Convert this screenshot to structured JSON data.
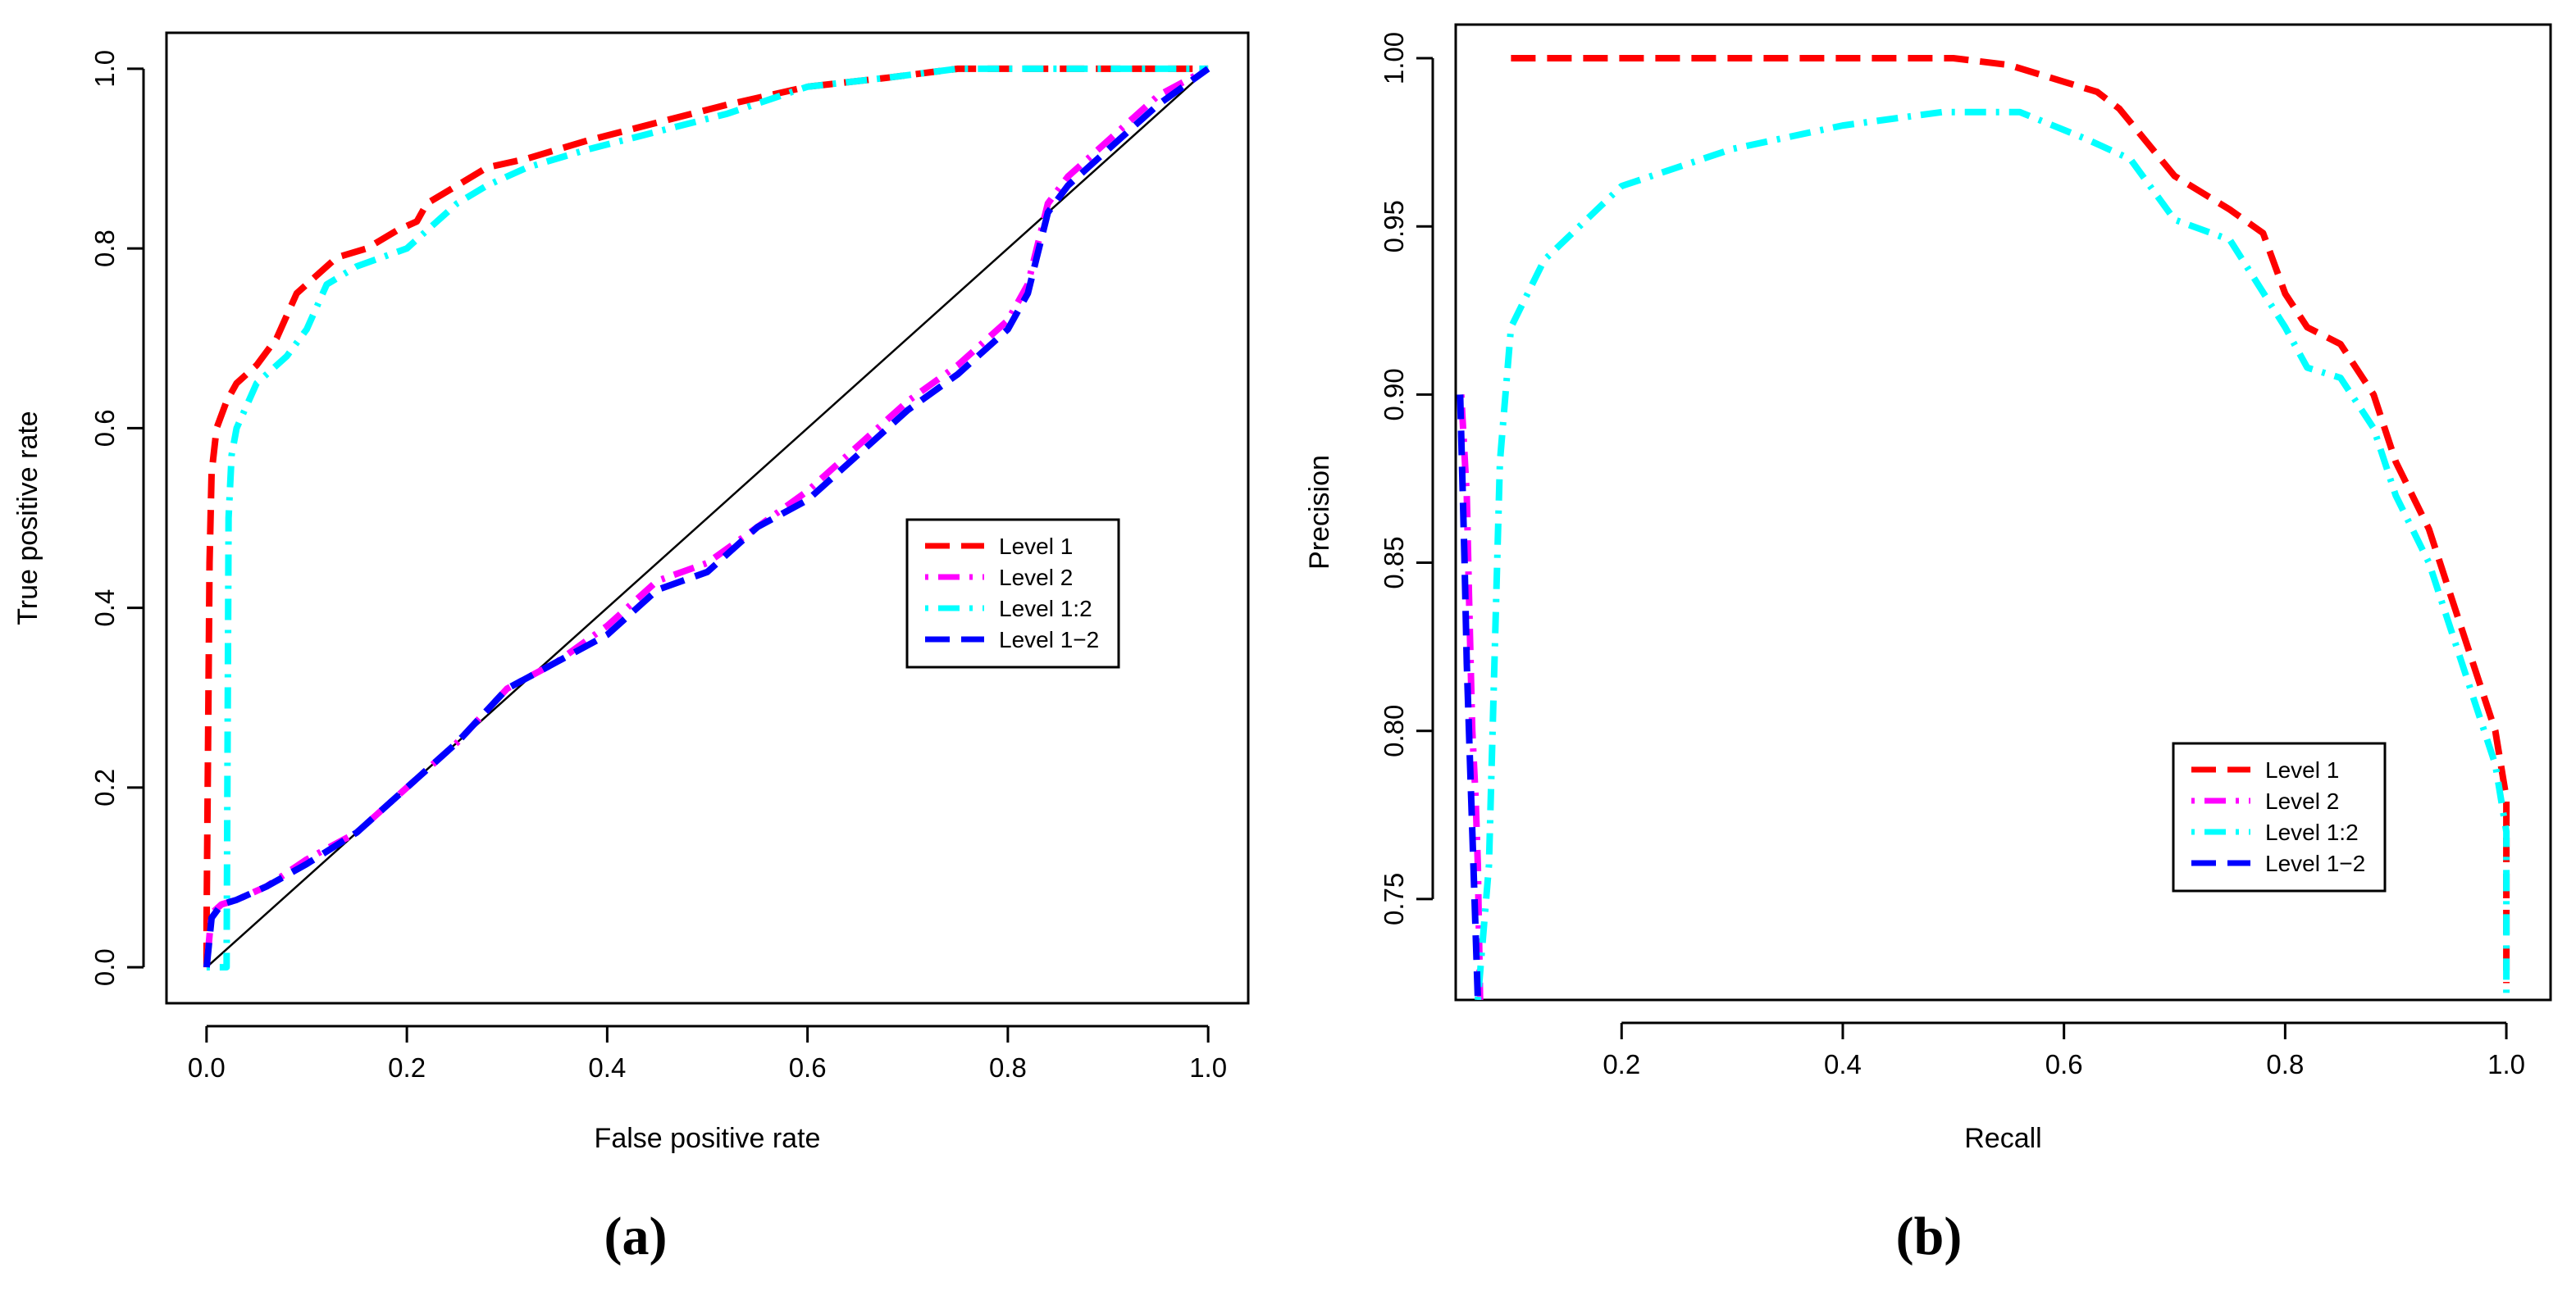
{
  "figure": {
    "panel_a_label": "a",
    "panel_b_label": "b"
  },
  "chart_data": [
    {
      "id": "roc",
      "type": "line",
      "title": "",
      "xlabel": "False positive rate",
      "ylabel": "True positive rate",
      "xlim": [
        -0.04,
        1.04
      ],
      "ylim": [
        -0.04,
        1.04
      ],
      "xticks": [
        0.0,
        0.2,
        0.4,
        0.6,
        0.8,
        1.0
      ],
      "xtick_labels": [
        "0.0",
        "0.2",
        "0.4",
        "0.6",
        "0.8",
        "1.0"
      ],
      "yticks": [
        0.0,
        0.2,
        0.4,
        0.6,
        0.8,
        1.0
      ],
      "ytick_labels": [
        "0.0",
        "0.2",
        "0.4",
        "0.6",
        "0.8",
        "1.0"
      ],
      "grid": false,
      "legend_position": "center-right",
      "reference_line": {
        "name": "Diagonal",
        "color": "#000000",
        "x": [
          0,
          1
        ],
        "y": [
          0,
          1
        ]
      },
      "series": [
        {
          "name": "Level 1",
          "color": "#ff0000",
          "dash": "dashed",
          "x": [
            0,
            0,
            0.003,
            0.005,
            0.01,
            0.02,
            0.03,
            0.05,
            0.07,
            0.09,
            0.11,
            0.13,
            0.16,
            0.19,
            0.21,
            0.22,
            0.25,
            0.28,
            0.32,
            0.38,
            0.45,
            0.52,
            0.6,
            0.68,
            0.75,
            0.85,
            1.0
          ],
          "y": [
            0,
            0.05,
            0.45,
            0.55,
            0.6,
            0.63,
            0.65,
            0.67,
            0.7,
            0.75,
            0.77,
            0.79,
            0.8,
            0.82,
            0.83,
            0.85,
            0.87,
            0.89,
            0.9,
            0.92,
            0.94,
            0.96,
            0.98,
            0.99,
            1.0,
            1.0,
            1.0
          ]
        },
        {
          "name": "Level 2",
          "color": "#ff00ff",
          "dash": "dotdash",
          "x": [
            0,
            0.005,
            0.015,
            0.03,
            0.06,
            0.1,
            0.15,
            0.2,
            0.25,
            0.3,
            0.35,
            0.4,
            0.45,
            0.5,
            0.55,
            0.6,
            0.65,
            0.7,
            0.75,
            0.78,
            0.8,
            0.82,
            0.84,
            0.86,
            0.9,
            0.95,
            1.0
          ],
          "y": [
            0,
            0.06,
            0.07,
            0.075,
            0.09,
            0.12,
            0.15,
            0.2,
            0.25,
            0.31,
            0.34,
            0.38,
            0.43,
            0.45,
            0.49,
            0.53,
            0.58,
            0.63,
            0.67,
            0.7,
            0.72,
            0.76,
            0.85,
            0.88,
            0.92,
            0.97,
            1.0
          ]
        },
        {
          "name": "Level 1:2",
          "color": "#00ffff",
          "dash": "dotdash",
          "x": [
            0,
            0.02,
            0.022,
            0.025,
            0.03,
            0.05,
            0.08,
            0.1,
            0.12,
            0.15,
            0.2,
            0.22,
            0.25,
            0.28,
            0.32,
            0.38,
            0.45,
            0.52,
            0.6,
            0.68,
            0.75,
            0.85,
            1.0
          ],
          "y": [
            0,
            0,
            0.5,
            0.57,
            0.6,
            0.65,
            0.68,
            0.71,
            0.76,
            0.78,
            0.8,
            0.82,
            0.85,
            0.87,
            0.89,
            0.91,
            0.93,
            0.95,
            0.98,
            0.99,
            1.0,
            1.0,
            1.0
          ]
        },
        {
          "name": "Level 1−2",
          "color": "#0000ff",
          "dash": "dashed",
          "x": [
            0,
            0.005,
            0.015,
            0.03,
            0.06,
            0.1,
            0.15,
            0.2,
            0.25,
            0.3,
            0.35,
            0.4,
            0.45,
            0.5,
            0.55,
            0.6,
            0.65,
            0.7,
            0.75,
            0.78,
            0.8,
            0.82,
            0.84,
            0.86,
            0.9,
            0.95,
            1.0
          ],
          "y": [
            0,
            0.055,
            0.07,
            0.075,
            0.09,
            0.115,
            0.15,
            0.2,
            0.25,
            0.31,
            0.34,
            0.37,
            0.42,
            0.44,
            0.49,
            0.52,
            0.57,
            0.62,
            0.66,
            0.69,
            0.71,
            0.75,
            0.84,
            0.87,
            0.91,
            0.96,
            1.0
          ]
        }
      ]
    },
    {
      "id": "pr",
      "type": "line",
      "title": "",
      "xlabel": "Recall",
      "ylabel": "Precision",
      "xlim": [
        0.05,
        1.04
      ],
      "ylim": [
        0.72,
        1.01
      ],
      "xticks": [
        0.2,
        0.4,
        0.6,
        0.8,
        1.0
      ],
      "xtick_labels": [
        "0.2",
        "0.4",
        "0.6",
        "0.8",
        "1.0"
      ],
      "yticks": [
        0.75,
        0.8,
        0.85,
        0.9,
        0.95,
        1.0
      ],
      "ytick_labels": [
        "0.75",
        "0.80",
        "0.85",
        "0.90",
        "0.95",
        "1.00"
      ],
      "grid": false,
      "legend_position": "bottom-right",
      "series": [
        {
          "name": "Level 1",
          "color": "#ff0000",
          "dash": "dashed",
          "x": [
            0.1,
            0.3,
            0.5,
            0.55,
            0.6,
            0.63,
            0.65,
            0.7,
            0.75,
            0.78,
            0.8,
            0.82,
            0.85,
            0.88,
            0.9,
            0.93,
            0.95,
            0.97,
            0.99,
            1.0,
            1.0
          ],
          "y": [
            1.0,
            1.0,
            1.0,
            0.998,
            0.993,
            0.99,
            0.985,
            0.965,
            0.955,
            0.948,
            0.93,
            0.92,
            0.915,
            0.9,
            0.88,
            0.86,
            0.84,
            0.82,
            0.8,
            0.78,
            0.725
          ]
        },
        {
          "name": "Level 2",
          "color": "#ff00ff",
          "dash": "dotdash",
          "x": [
            0.055,
            0.06,
            0.062,
            0.065,
            0.068,
            0.07,
            0.072
          ],
          "y": [
            0.9,
            0.87,
            0.84,
            0.8,
            0.78,
            0.76,
            0.72
          ]
        },
        {
          "name": "Level 1:2",
          "color": "#00ffff",
          "dash": "dotdash",
          "x": [
            0.07,
            0.08,
            0.09,
            0.1,
            0.13,
            0.2,
            0.3,
            0.4,
            0.49,
            0.56,
            0.62,
            0.66,
            0.7,
            0.75,
            0.8,
            0.82,
            0.85,
            0.88,
            0.9,
            0.93,
            0.95,
            0.97,
            0.99,
            1.0,
            1.0
          ],
          "y": [
            0.72,
            0.76,
            0.88,
            0.92,
            0.94,
            0.962,
            0.973,
            0.98,
            0.984,
            0.984,
            0.976,
            0.97,
            0.952,
            0.946,
            0.92,
            0.908,
            0.905,
            0.89,
            0.87,
            0.85,
            0.83,
            0.81,
            0.79,
            0.77,
            0.72
          ]
        },
        {
          "name": "Level 1−2",
          "color": "#0000ff",
          "dash": "dashed",
          "x": [
            0.054,
            0.058,
            0.06,
            0.063,
            0.066,
            0.07
          ],
          "y": [
            0.9,
            0.85,
            0.82,
            0.79,
            0.76,
            0.72
          ]
        }
      ]
    }
  ]
}
